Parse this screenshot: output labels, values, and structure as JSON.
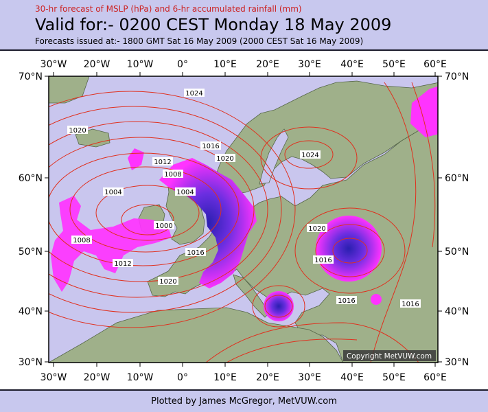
{
  "header": {
    "subtitle": "30-hr forecast of MSLP (hPa) and 6-hr accumulated rainfall (mm)",
    "title": "Valid for:- 0200 CEST Monday 18 May 2009",
    "issued": "Forecasts issued at:- 1800 GMT Sat 16 May 2009 (2000 CEST Sat 16 May 2009)"
  },
  "map": {
    "lon_labels": [
      "30°W",
      "20°W",
      "10°W",
      "0°",
      "10°E",
      "20°E",
      "30°E",
      "40°E",
      "50°E",
      "60°E"
    ],
    "lat_labels": [
      "70°N",
      "60°N",
      "50°N",
      "40°N",
      "30°N"
    ],
    "isobar_labels": [
      "1024",
      "1020",
      "1016",
      "1020",
      "1012",
      "1008",
      "1004",
      "1004",
      "1000",
      "1008",
      "1012",
      "1016",
      "1020",
      "1024",
      "1020",
      "1016",
      "1016",
      "1016"
    ],
    "copyright": "Copyright MetVUW.com",
    "colors": {
      "sea": "#c9c6ee",
      "land": "#9fb08a",
      "isobar": "#e0301e",
      "rain_light": "#ff33ff",
      "rain_heavy": "#3322cc"
    }
  },
  "footer": {
    "plotted_by": "Plotted by James McGregor, MetVUW.com"
  }
}
